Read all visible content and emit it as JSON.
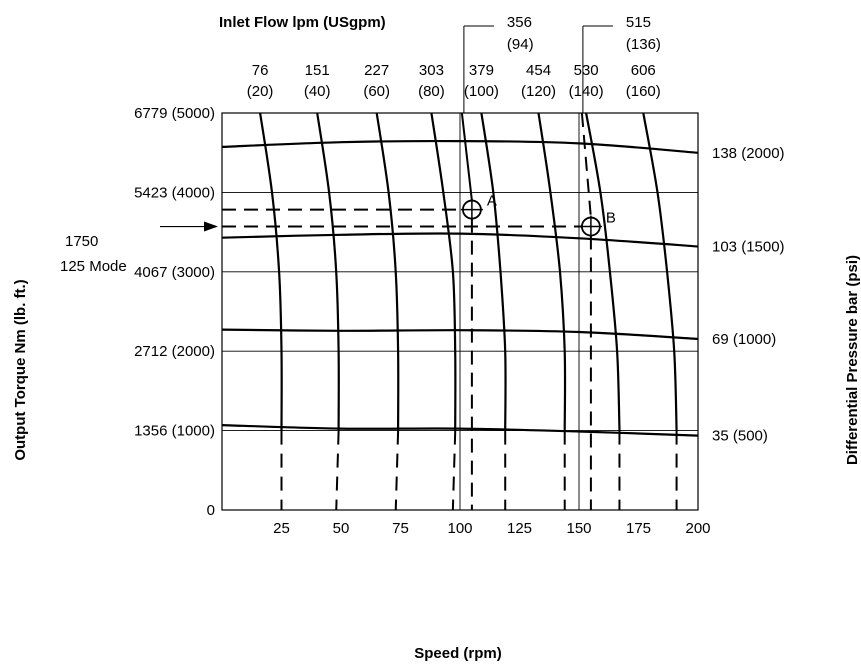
{
  "chart_data": {
    "type": "line",
    "title": "Inlet Flow lpm (USgpm)",
    "xlabel": "Speed (rpm)",
    "ylabel_left": "Output Torque Nm (lb. ft.)",
    "ylabel_right": "Differential Pressure bar (psi)",
    "xlim": [
      0,
      200
    ],
    "ylim": [
      0,
      6779
    ],
    "x_ticks": [
      0,
      25,
      50,
      75,
      100,
      125,
      150,
      175,
      200
    ],
    "x_tick_labels": [
      "",
      "25",
      "50",
      "75",
      "100",
      "125",
      "150",
      "175",
      "200"
    ],
    "y_ticks_left": [
      {
        "value": 0,
        "label": "0"
      },
      {
        "value": 1356,
        "label": "1356 (1000)"
      },
      {
        "value": 2712,
        "label": "2712 (2000)"
      },
      {
        "value": 4067,
        "label": "4067 (3000)"
      },
      {
        "value": 5423,
        "label": "5423 (4000)"
      },
      {
        "value": 6779,
        "label": "6779 (5000)"
      }
    ],
    "flow_curves": [
      {
        "lpm": "76",
        "gpm": "(20)",
        "points": [
          [
            16,
            6779
          ],
          [
            21,
            5423
          ],
          [
            24,
            4067
          ],
          [
            25,
            2712
          ],
          [
            25,
            1356
          ]
        ],
        "dash_to": 25
      },
      {
        "lpm": "151",
        "gpm": "(40)",
        "points": [
          [
            40,
            6779
          ],
          [
            45,
            5423
          ],
          [
            48,
            4067
          ],
          [
            49,
            2712
          ],
          [
            49,
            1356
          ]
        ],
        "dash_to": 48
      },
      {
        "lpm": "227",
        "gpm": "(60)",
        "points": [
          [
            65,
            6779
          ],
          [
            70,
            5423
          ],
          [
            73,
            4067
          ],
          [
            74,
            2712
          ],
          [
            74,
            1356
          ]
        ],
        "dash_to": 73
      },
      {
        "lpm": "303",
        "gpm": "(80)",
        "points": [
          [
            88,
            6779
          ],
          [
            93,
            5423
          ],
          [
            97,
            4067
          ],
          [
            98,
            2712
          ],
          [
            98,
            1356
          ]
        ],
        "dash_to": 97
      },
      {
        "lpm": "379",
        "gpm": "(100)",
        "points": [
          [
            109,
            6779
          ],
          [
            114,
            5423
          ],
          [
            117,
            4067
          ],
          [
            119,
            2712
          ],
          [
            119,
            1356
          ]
        ],
        "dash_to": 119
      },
      {
        "lpm": "454",
        "gpm": "(120)",
        "points": [
          [
            133,
            6779
          ],
          [
            138,
            5423
          ],
          [
            142,
            4067
          ],
          [
            144,
            2712
          ],
          [
            144,
            1356
          ]
        ],
        "dash_to": 144
      },
      {
        "lpm": "530",
        "gpm": "(140)",
        "points": [
          [
            153,
            6779
          ],
          [
            159,
            5423
          ],
          [
            163,
            4067
          ],
          [
            166,
            2712
          ],
          [
            167,
            1356
          ]
        ],
        "dash_to": 167
      },
      {
        "lpm": "606",
        "gpm": "(160)",
        "points": [
          [
            177,
            6779
          ],
          [
            183,
            5423
          ],
          [
            187,
            4067
          ],
          [
            190,
            2712
          ],
          [
            191,
            1356
          ]
        ],
        "dash_to": 191
      }
    ],
    "pressure_curves": [
      {
        "label": "138 (2000)",
        "points": [
          [
            0,
            6200
          ],
          [
            50,
            6280
          ],
          [
            100,
            6300
          ],
          [
            150,
            6260
          ],
          [
            200,
            6100
          ]
        ]
      },
      {
        "label": "103 (1500)",
        "points": [
          [
            0,
            4650
          ],
          [
            50,
            4700
          ],
          [
            100,
            4720
          ],
          [
            150,
            4640
          ],
          [
            200,
            4500
          ]
        ]
      },
      {
        "label": "69 (1000)",
        "points": [
          [
            0,
            3080
          ],
          [
            50,
            3060
          ],
          [
            100,
            3070
          ],
          [
            150,
            3040
          ],
          [
            200,
            2920
          ]
        ]
      },
      {
        "label": "35 (500)",
        "points": [
          [
            0,
            1450
          ],
          [
            50,
            1390
          ],
          [
            100,
            1390
          ],
          [
            150,
            1340
          ],
          [
            200,
            1270
          ]
        ]
      }
    ],
    "callouts": [
      {
        "lpm": "356",
        "gpm": "(94)",
        "x": 105
      },
      {
        "lpm": "515",
        "gpm": "(136)",
        "x": 155
      }
    ],
    "points": [
      {
        "label": "A",
        "x": 105,
        "y": 5130
      },
      {
        "label": "B",
        "x": 155,
        "y": 4840
      }
    ],
    "operating_line": {
      "value": 4840,
      "label_line1": "1750",
      "label_line2": "125 Mode"
    }
  }
}
